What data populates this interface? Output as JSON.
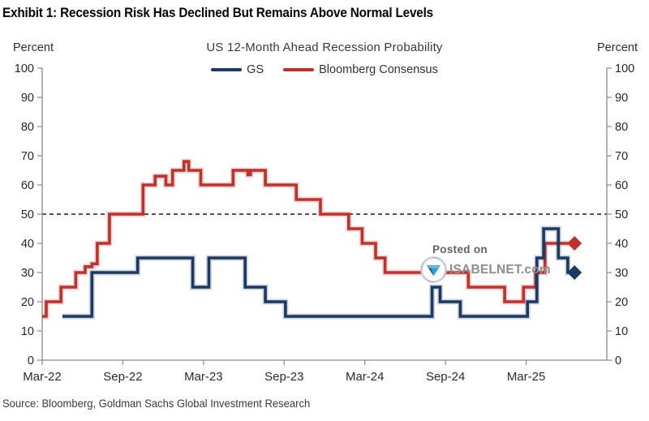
{
  "header": {
    "title": "Exhibit 1: Recession Risk Has Declined But Remains Above Normal Levels"
  },
  "watermark": {
    "line1": "Posted on",
    "line2": "ISABELNET.com"
  },
  "footer": {
    "source": "Source: Bloomberg, Goldman Sachs Global Investment Research"
  },
  "chart_data": {
    "type": "line",
    "title": "US 12-Month Ahead Recession Probability",
    "axis_unit_label": "Percent",
    "ylim": [
      0,
      100
    ],
    "ytick_interval": 10,
    "grid": false,
    "legend_position": "top-center",
    "reference_line": {
      "value": 50,
      "style": "dashed",
      "color": "#1a1a1a"
    },
    "x_axis": {
      "unit": "months since Mar-2022",
      "range_months": [
        0,
        42
      ],
      "tick_months": [
        0,
        6,
        12,
        18,
        24,
        30,
        36
      ],
      "tick_labels": [
        "Mar-22",
        "Sep-22",
        "Mar-23",
        "Sep-23",
        "Mar-24",
        "Sep-24",
        "Mar-25"
      ]
    },
    "series": [
      {
        "name": "Bloomberg Consensus",
        "color": "#BE322E",
        "halo_color": "rgba(190,50,46,0.22)",
        "line_style": "step",
        "end_marker": "diamond",
        "end_month": 39.6,
        "last_value": 40,
        "points": [
          [
            0,
            15
          ],
          [
            0.3,
            20
          ],
          [
            1.4,
            25
          ],
          [
            2.5,
            30
          ],
          [
            3.2,
            32
          ],
          [
            3.7,
            33
          ],
          [
            4.1,
            40
          ],
          [
            5.0,
            50
          ],
          [
            7.5,
            60
          ],
          [
            8.4,
            63
          ],
          [
            9.2,
            60
          ],
          [
            9.7,
            65
          ],
          [
            10.55,
            68
          ],
          [
            10.9,
            65
          ],
          [
            11.8,
            60
          ],
          [
            14.2,
            65
          ],
          [
            15.3,
            63.5
          ],
          [
            15.5,
            65
          ],
          [
            16.6,
            60
          ],
          [
            18.9,
            55
          ],
          [
            20.7,
            50
          ],
          [
            22.8,
            45
          ],
          [
            23.8,
            40
          ],
          [
            24.8,
            35
          ],
          [
            25.5,
            30
          ],
          [
            31.7,
            25
          ],
          [
            34.4,
            20
          ],
          [
            35.8,
            25
          ],
          [
            36.7,
            30
          ],
          [
            37.4,
            40
          ]
        ]
      },
      {
        "name": "GS",
        "color": "#1B3962",
        "halo_color": "rgba(27,57,98,0.22)",
        "line_style": "step",
        "end_marker": "diamond",
        "end_month": 39.6,
        "last_value": 30,
        "points": [
          [
            1.5,
            15
          ],
          [
            3.7,
            30
          ],
          [
            7.1,
            35
          ],
          [
            11.2,
            25
          ],
          [
            12.4,
            35
          ],
          [
            15.1,
            25
          ],
          [
            16.6,
            20
          ],
          [
            18.1,
            15
          ],
          [
            29.0,
            25
          ],
          [
            29.6,
            20
          ],
          [
            31.1,
            15
          ],
          [
            36.1,
            20
          ],
          [
            36.8,
            35
          ],
          [
            37.3,
            45
          ],
          [
            38.4,
            35
          ],
          [
            39.1,
            30
          ]
        ]
      }
    ],
    "legend_order": [
      "GS",
      "Bloomberg Consensus"
    ]
  }
}
